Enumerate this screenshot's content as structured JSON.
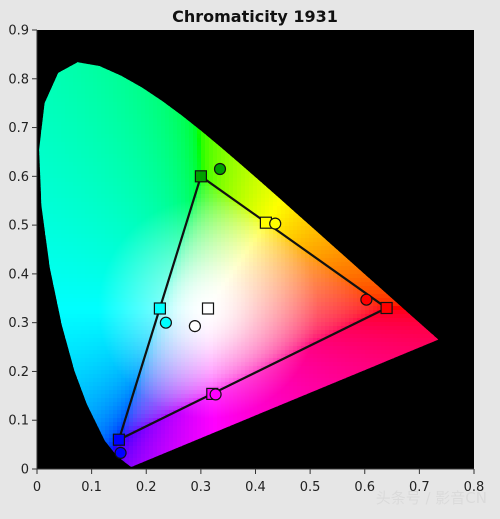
{
  "chart_data": {
    "type": "scatter",
    "title": "Chromaticity 1931",
    "xlabel": "",
    "ylabel": "",
    "xlim": [
      0,
      0.8
    ],
    "ylim": [
      0,
      0.9
    ],
    "x_ticks": [
      0,
      0.1,
      0.2,
      0.3,
      0.4,
      0.5,
      0.6,
      0.7,
      0.8
    ],
    "y_ticks": [
      0,
      0.1,
      0.2,
      0.3,
      0.4,
      0.5,
      0.6,
      0.7,
      0.8,
      0.9
    ],
    "x_tick_labels": [
      "0",
      "0.1",
      "0.2",
      "0.3",
      "0.4",
      "0.5",
      "0.6",
      "0.7",
      "0.8"
    ],
    "y_tick_labels": [
      "0",
      "0.1",
      "0.2",
      "0.3",
      "0.4",
      "0.5",
      "0.6",
      "0.7",
      "0.8",
      "0.9"
    ],
    "grid": false,
    "background_color": "#000000",
    "gamut_triangle": [
      {
        "x": 0.3,
        "y": 0.6
      },
      {
        "x": 0.64,
        "y": 0.33
      },
      {
        "x": 0.15,
        "y": 0.06
      }
    ],
    "series": [
      {
        "marker": "square",
        "points": [
          {
            "x": 0.3,
            "y": 0.6,
            "color": "#00a000"
          },
          {
            "x": 0.64,
            "y": 0.33,
            "color": "#ff0000"
          },
          {
            "x": 0.15,
            "y": 0.06,
            "color": "#0000ff"
          },
          {
            "x": 0.419,
            "y": 0.505,
            "color": "#ffff00"
          },
          {
            "x": 0.225,
            "y": 0.329,
            "color": "#00ffff"
          },
          {
            "x": 0.321,
            "y": 0.154,
            "color": "#ff00ff"
          },
          {
            "x": 0.313,
            "y": 0.329,
            "color": "#ffffff"
          }
        ]
      },
      {
        "marker": "circle",
        "points": [
          {
            "x": 0.335,
            "y": 0.615,
            "color": "#00a000"
          },
          {
            "x": 0.603,
            "y": 0.347,
            "color": "#ff0000"
          },
          {
            "x": 0.153,
            "y": 0.033,
            "color": "#0000ff"
          },
          {
            "x": 0.436,
            "y": 0.503,
            "color": "#ffff00"
          },
          {
            "x": 0.236,
            "y": 0.3,
            "color": "#00ffff"
          },
          {
            "x": 0.327,
            "y": 0.153,
            "color": "#ff00ff"
          },
          {
            "x": 0.289,
            "y": 0.293,
            "color": "#ffffff"
          }
        ]
      }
    ],
    "spectral_locus": [
      [
        0.1741,
        0.005
      ],
      [
        0.1738,
        0.0049
      ],
      [
        0.1733,
        0.0048
      ],
      [
        0.1726,
        0.0048
      ],
      [
        0.1714,
        0.0051
      ],
      [
        0.1689,
        0.0069
      ],
      [
        0.1644,
        0.0109
      ],
      [
        0.1566,
        0.0177
      ],
      [
        0.144,
        0.0297
      ],
      [
        0.1241,
        0.0578
      ],
      [
        0.0913,
        0.1327
      ],
      [
        0.0687,
        0.2007
      ],
      [
        0.0454,
        0.295
      ],
      [
        0.0235,
        0.4127
      ],
      [
        0.0082,
        0.5384
      ],
      [
        0.0039,
        0.6548
      ],
      [
        0.0139,
        0.7502
      ],
      [
        0.0389,
        0.812
      ],
      [
        0.0743,
        0.8338
      ],
      [
        0.1142,
        0.8262
      ],
      [
        0.1547,
        0.8059
      ],
      [
        0.1929,
        0.7816
      ],
      [
        0.2296,
        0.7543
      ],
      [
        0.2658,
        0.7243
      ],
      [
        0.3016,
        0.6923
      ],
      [
        0.3373,
        0.6589
      ],
      [
        0.3731,
        0.6245
      ],
      [
        0.4087,
        0.5896
      ],
      [
        0.4441,
        0.5547
      ],
      [
        0.4788,
        0.5202
      ],
      [
        0.5125,
        0.4866
      ],
      [
        0.5448,
        0.4544
      ],
      [
        0.5752,
        0.4242
      ],
      [
        0.6029,
        0.3965
      ],
      [
        0.627,
        0.3725
      ],
      [
        0.6482,
        0.3514
      ],
      [
        0.6658,
        0.334
      ],
      [
        0.6801,
        0.3197
      ],
      [
        0.6915,
        0.3083
      ],
      [
        0.7006,
        0.2993
      ],
      [
        0.7079,
        0.292
      ],
      [
        0.714,
        0.2859
      ],
      [
        0.719,
        0.2809
      ],
      [
        0.723,
        0.277
      ],
      [
        0.726,
        0.274
      ],
      [
        0.7283,
        0.2717
      ],
      [
        0.73,
        0.27
      ],
      [
        0.7347,
        0.2653
      ]
    ],
    "watermark": "头条号 / 影音CN"
  }
}
